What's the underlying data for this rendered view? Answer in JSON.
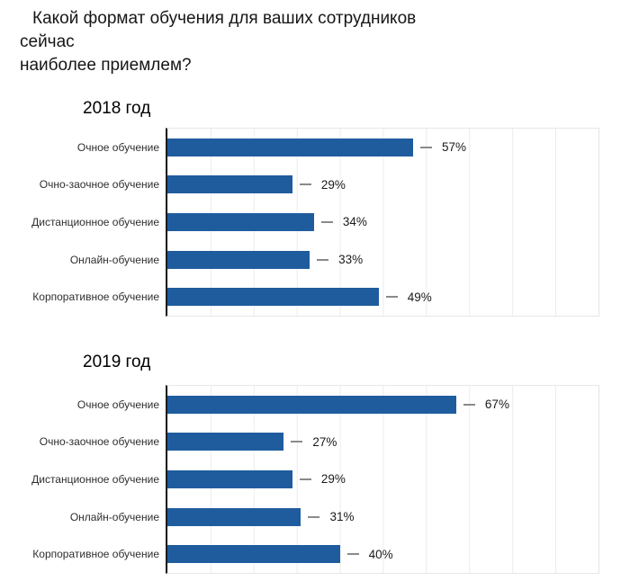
{
  "page": {
    "title": "Какой формат обучения для ваших сотрудников сейчас наиболее приемлем?",
    "title_line1": "Какой формат обучения для ваших сотрудников сейчас",
    "title_line2": "наиболее приемлем?"
  },
  "colors": {
    "bar": "#1f5c9e",
    "axis": "#1c1c1c",
    "grid": "#ececec",
    "leader_dash": "#8a8a8a",
    "text": "#161616",
    "background": "#ffffff"
  },
  "chart_data": [
    {
      "type": "bar",
      "orientation": "horizontal",
      "figure_title": "Какой формат обучения для ваших сотрудников сейчас наиболее приемлем?",
      "title": "2018 год",
      "categories": [
        "Очное обучение",
        "Очно-заочное обучение",
        "Дистанционное обучение",
        "Онлайн-обучение",
        "Корпоративное обучение"
      ],
      "values": [
        57,
        29,
        34,
        33,
        49
      ],
      "value_labels": [
        "57%",
        "29%",
        "34%",
        "33%",
        "49%"
      ],
      "unit": "%",
      "xlim": [
        0,
        100
      ],
      "grid": true,
      "grid_step": 10,
      "legend": "none",
      "xlabel": "",
      "ylabel": ""
    },
    {
      "type": "bar",
      "orientation": "horizontal",
      "figure_title": "Какой формат обучения для ваших сотрудников сейчас наиболее приемлем?",
      "title": "2019 год",
      "categories": [
        "Очное обучение",
        "Очно-заочное обучение",
        "Дистанционное обучение",
        "Онлайн-обучение",
        "Корпоративное обучение"
      ],
      "values": [
        67,
        27,
        29,
        31,
        40
      ],
      "value_labels": [
        "67%",
        "27%",
        "29%",
        "31%",
        "40%"
      ],
      "unit": "%",
      "xlim": [
        0,
        100
      ],
      "grid": true,
      "grid_step": 10,
      "legend": "none",
      "xlabel": "",
      "ylabel": ""
    }
  ]
}
